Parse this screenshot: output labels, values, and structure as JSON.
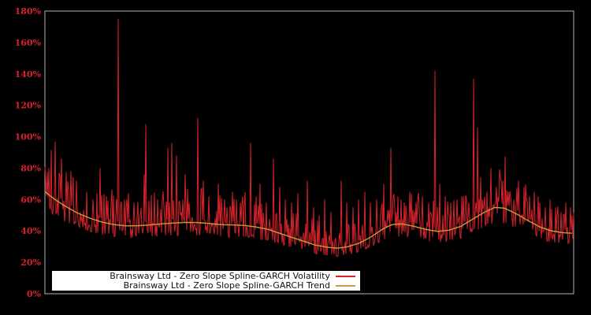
{
  "chart_data": {
    "type": "line",
    "title": "",
    "xlabel": "",
    "ylabel": "",
    "grid": false,
    "ylim": [
      0,
      180
    ],
    "x_axis_labels_visible": false,
    "y_ticks": [
      {
        "value": 0,
        "label": "0%"
      },
      {
        "value": 20,
        "label": "20%"
      },
      {
        "value": 40,
        "label": "40%"
      },
      {
        "value": 60,
        "label": "60%"
      },
      {
        "value": 80,
        "label": "80%"
      },
      {
        "value": 100,
        "label": "100%"
      },
      {
        "value": 120,
        "label": "120%"
      },
      {
        "value": 140,
        "label": "140%"
      },
      {
        "value": 160,
        "label": "160%"
      },
      {
        "value": 180,
        "label": "180%"
      }
    ],
    "colors": {
      "background": "#000000",
      "plot_border": "#b4b4b4",
      "axis_label": "#d7222a",
      "legend_bg": "#ffffff",
      "legend_text": "#111111"
    },
    "series": [
      {
        "name": "Brainsway Ltd - Zero Slope Spline-GARCH Volatility",
        "color": "#d7222a",
        "role": "volatility",
        "line_width": 1
      },
      {
        "name": "Brainsway Ltd - Zero Slope Spline-GARCH Trend",
        "color": "#c89b3c",
        "role": "trend",
        "line_width": 1.4
      }
    ],
    "legend_position": "bottom-left-inside",
    "trend_pct": [
      [
        0,
        65
      ],
      [
        0.019,
        60
      ],
      [
        0.042,
        55
      ],
      [
        0.064,
        51
      ],
      [
        0.086,
        48
      ],
      [
        0.109,
        45.5
      ],
      [
        0.131,
        44
      ],
      [
        0.154,
        43.2
      ],
      [
        0.176,
        43.3
      ],
      [
        0.198,
        43.8
      ],
      [
        0.221,
        44.5
      ],
      [
        0.243,
        45
      ],
      [
        0.265,
        45.4
      ],
      [
        0.288,
        45.3
      ],
      [
        0.31,
        44.8
      ],
      [
        0.332,
        44
      ],
      [
        0.355,
        43.8
      ],
      [
        0.377,
        43.5
      ],
      [
        0.399,
        42.5
      ],
      [
        0.422,
        41
      ],
      [
        0.444,
        38.5
      ],
      [
        0.466,
        36
      ],
      [
        0.489,
        33.5
      ],
      [
        0.511,
        31
      ],
      [
        0.534,
        29.6
      ],
      [
        0.553,
        29
      ],
      [
        0.571,
        29.8
      ],
      [
        0.593,
        32
      ],
      [
        0.616,
        36
      ],
      [
        0.638,
        41
      ],
      [
        0.656,
        44
      ],
      [
        0.675,
        44.5
      ],
      [
        0.697,
        43
      ],
      [
        0.72,
        41
      ],
      [
        0.742,
        39.7
      ],
      [
        0.765,
        40.5
      ],
      [
        0.787,
        43
      ],
      [
        0.809,
        47.5
      ],
      [
        0.832,
        52
      ],
      [
        0.851,
        55
      ],
      [
        0.869,
        54.5
      ],
      [
        0.891,
        51
      ],
      [
        0.914,
        46.5
      ],
      [
        0.936,
        42.5
      ],
      [
        0.958,
        40
      ],
      [
        0.981,
        38.8
      ],
      [
        1,
        38.5
      ]
    ],
    "spikes_pct": [
      [
        0.007,
        80
      ],
      [
        0.019,
        97
      ],
      [
        0.031,
        86
      ],
      [
        0.049,
        78
      ],
      [
        0.06,
        72
      ],
      [
        0.079,
        65
      ],
      [
        0.091,
        60
      ],
      [
        0.104,
        80
      ],
      [
        0.116,
        62
      ],
      [
        0.139,
        175
      ],
      [
        0.151,
        60
      ],
      [
        0.158,
        64
      ],
      [
        0.168,
        58
      ],
      [
        0.191,
        108
      ],
      [
        0.201,
        63
      ],
      [
        0.213,
        60
      ],
      [
        0.233,
        93
      ],
      [
        0.24,
        96
      ],
      [
        0.249,
        88
      ],
      [
        0.261,
        60
      ],
      [
        0.273,
        58
      ],
      [
        0.289,
        112
      ],
      [
        0.3,
        72
      ],
      [
        0.31,
        62
      ],
      [
        0.328,
        70
      ],
      [
        0.34,
        60
      ],
      [
        0.355,
        65
      ],
      [
        0.37,
        58
      ],
      [
        0.389,
        96
      ],
      [
        0.399,
        62
      ],
      [
        0.407,
        70
      ],
      [
        0.419,
        58
      ],
      [
        0.432,
        86
      ],
      [
        0.444,
        68
      ],
      [
        0.455,
        60
      ],
      [
        0.466,
        58
      ],
      [
        0.478,
        64
      ],
      [
        0.496,
        72
      ],
      [
        0.508,
        55
      ],
      [
        0.519,
        50
      ],
      [
        0.529,
        60
      ],
      [
        0.541,
        52
      ],
      [
        0.56,
        72
      ],
      [
        0.571,
        58
      ],
      [
        0.583,
        55
      ],
      [
        0.593,
        60
      ],
      [
        0.605,
        65
      ],
      [
        0.616,
        58
      ],
      [
        0.627,
        60
      ],
      [
        0.641,
        70
      ],
      [
        0.654,
        93
      ],
      [
        0.668,
        62
      ],
      [
        0.68,
        58
      ],
      [
        0.69,
        65
      ],
      [
        0.702,
        58
      ],
      [
        0.714,
        62
      ],
      [
        0.726,
        58
      ],
      [
        0.738,
        142
      ],
      [
        0.747,
        70
      ],
      [
        0.757,
        62
      ],
      [
        0.768,
        58
      ],
      [
        0.779,
        60
      ],
      [
        0.791,
        62
      ],
      [
        0.802,
        58
      ],
      [
        0.811,
        137
      ],
      [
        0.818,
        106
      ],
      [
        0.827,
        60
      ],
      [
        0.836,
        65
      ],
      [
        0.844,
        80
      ],
      [
        0.854,
        68
      ],
      [
        0.866,
        72
      ],
      [
        0.876,
        65
      ],
      [
        0.887,
        60
      ],
      [
        0.896,
        72
      ],
      [
        0.906,
        68
      ],
      [
        0.917,
        62
      ],
      [
        0.926,
        65
      ],
      [
        0.936,
        58
      ],
      [
        0.946,
        55
      ],
      [
        0.955,
        60
      ],
      [
        0.966,
        55
      ],
      [
        0.976,
        52
      ],
      [
        0.985,
        58
      ],
      [
        0.994,
        55
      ]
    ],
    "noise": {
      "seed": 20,
      "low": 0.82,
      "span": 0.7,
      "power": 1.8,
      "extra_prob": 0.05,
      "extra_mult": 1.22
    }
  }
}
